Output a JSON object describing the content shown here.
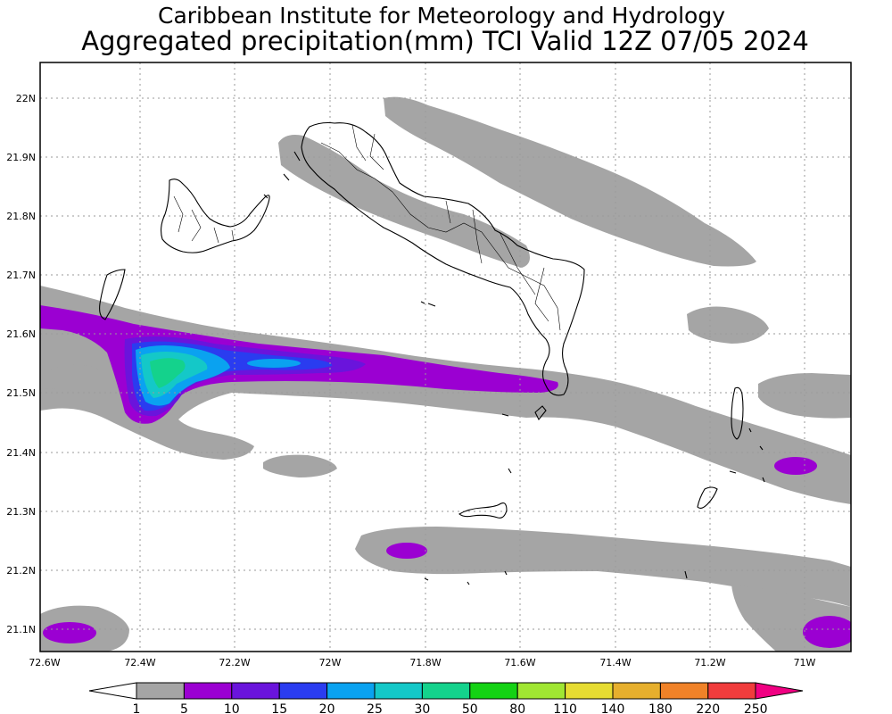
{
  "title": {
    "line1": "Caribbean Institute for Meteorology and Hydrology",
    "line2": "Aggregated precipitation(mm) TCI Valid 12Z 07/05 2024"
  },
  "lat_labels": [
    "22N",
    "21.9N",
    "21.8N",
    "21.7N",
    "21.6N",
    "21.5N",
    "21.4N",
    "21.3N",
    "21.2N",
    "21.1N"
  ],
  "lon_labels": [
    "72.6W",
    "72.4W",
    "72.2W",
    "72W",
    "71.8W",
    "71.6W",
    "71.4W",
    "71.2W",
    "71W"
  ],
  "colorbar": {
    "levels": [
      "1",
      "5",
      "10",
      "15",
      "20",
      "25",
      "30",
      "50",
      "80",
      "110",
      "140",
      "180",
      "220",
      "250"
    ],
    "colors": [
      "#a5a5a5",
      "#9b00d2",
      "#6a14dc",
      "#2a3cf0",
      "#0aa2f0",
      "#14c8c8",
      "#14d28c",
      "#14d214",
      "#a0e632",
      "#e6dc32",
      "#e6af2d",
      "#f08228",
      "#f03c3c",
      "#f00082"
    ]
  },
  "legend_colors": {
    "grey_1_5": "#a5a5a5",
    "purple_5_10": "#9b00d2",
    "violet_10_15": "#6a14dc",
    "blue_15_20": "#2a3cf0",
    "sky_20_25": "#0aa2f0",
    "teal_25_30": "#14c8c8",
    "seagreen_30_50": "#14d28c",
    "land_outline": "#000000"
  }
}
